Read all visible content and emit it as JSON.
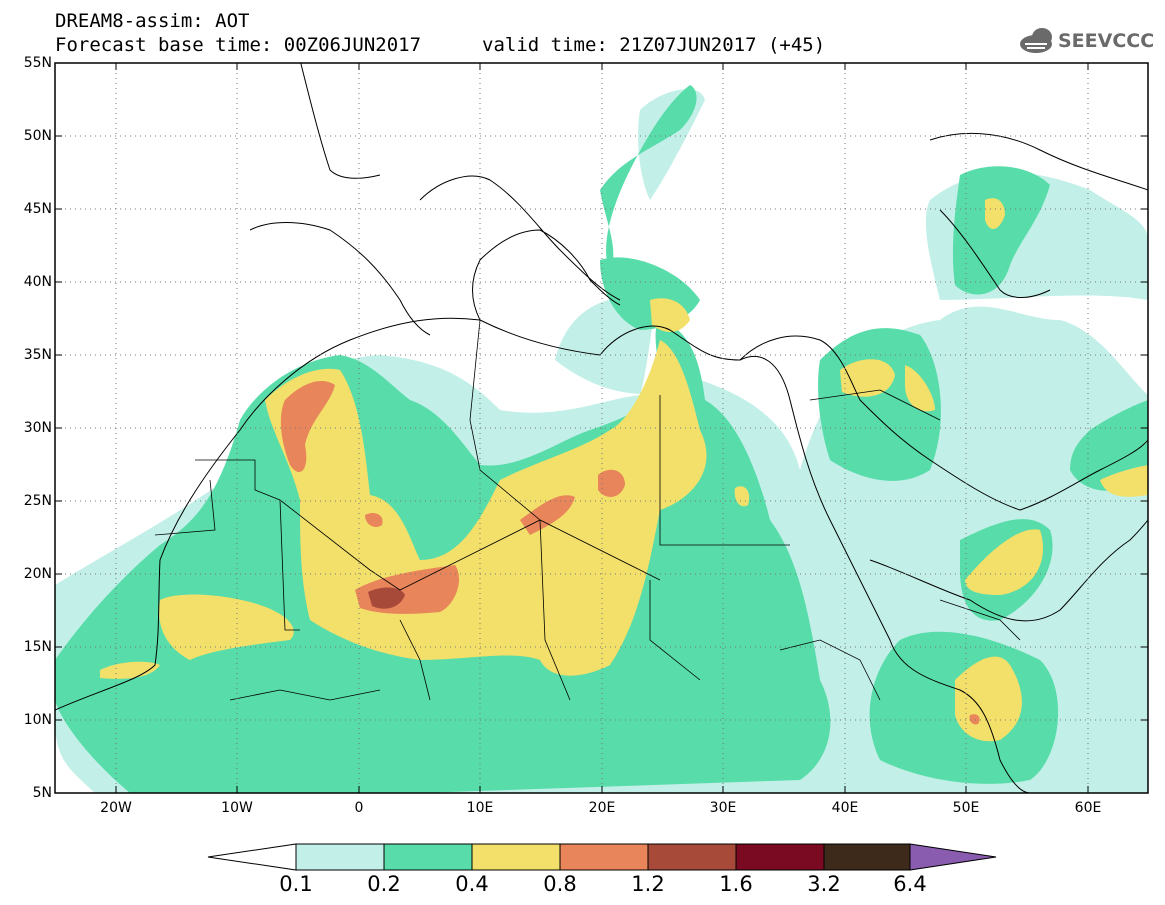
{
  "header": {
    "line1": "DREAM8-assim: AOT",
    "line2": "Forecast base time: 00Z06JUN2017",
    "line3": "valid time: 21Z07JUN2017 (+45)"
  },
  "logo": {
    "text": "SEEVCCC",
    "icon": "cloud-logo-icon"
  },
  "map": {
    "lat_labels": [
      "55N",
      "50N",
      "45N",
      "40N",
      "35N",
      "30N",
      "25N",
      "20N",
      "15N",
      "10N",
      "5N"
    ],
    "lon_labels": [
      "20W",
      "10W",
      "0",
      "10E",
      "20E",
      "30E",
      "40E",
      "50E",
      "60E"
    ],
    "lat_range": [
      5,
      55
    ],
    "lon_range": [
      -25,
      65
    ],
    "grid": "dotted"
  },
  "colorbar": {
    "labels": [
      "0.1",
      "0.2",
      "0.4",
      "0.8",
      "1.2",
      "1.6",
      "3.2",
      "6.4"
    ],
    "colors": {
      "below": "#ffffff",
      "c1": "#c2f0e8",
      "c2": "#58dcaa",
      "c3": "#f2e06a",
      "c4": "#e8855a",
      "c5": "#a84a3a",
      "c6": "#7a0a22",
      "c7": "#3e2a1a",
      "above": "#8a5cb0"
    }
  }
}
